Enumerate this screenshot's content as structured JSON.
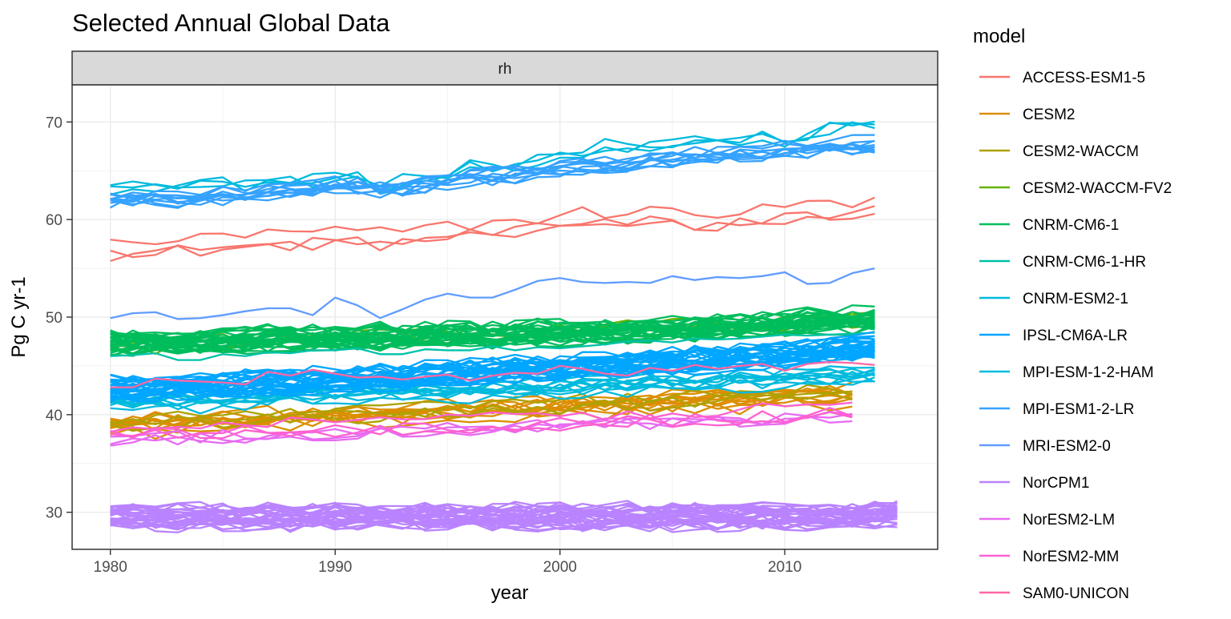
{
  "chart_data": {
    "type": "line",
    "title": "Selected Annual Global Data",
    "facet_label": "rh",
    "xlabel": "year",
    "ylabel": "Pg C yr-1",
    "xlim": [
      1978.3,
      2016.8
    ],
    "ylim": [
      26.2,
      73.8
    ],
    "x_ticks": [
      1980,
      1990,
      2000,
      2010
    ],
    "y_ticks": [
      30,
      40,
      50,
      60,
      70
    ],
    "grid": true,
    "legend": {
      "title": "model",
      "position": "right"
    },
    "series": [
      {
        "name": "ACCESS-ESM1-5",
        "color": "#F8766D",
        "members": 3,
        "x_start": 1980,
        "x_end": 2014,
        "values_mean": [
          57.1,
          57.1,
          57.3,
          57.4,
          57.5,
          57.6,
          57.8,
          58.0,
          58.0,
          58.2,
          58.2,
          58.2,
          58.1,
          58.4,
          58.5,
          58.8,
          59.0,
          59.2,
          59.3,
          59.6,
          59.8,
          60.2,
          60.2,
          60.3,
          60.4,
          60.3,
          60.1,
          60.1,
          60.3,
          60.5,
          60.9,
          61.0,
          61.1,
          61.3,
          61.4
        ]
      },
      {
        "name": "CESM2",
        "color": "#DB8E00",
        "members": 11,
        "x_start": 1980,
        "x_end": 2013,
        "values_mean": [
          38.9,
          39.0,
          39.1,
          39.2,
          39.3,
          39.4,
          39.5,
          39.6,
          39.7,
          39.8,
          39.9,
          40.0,
          40.0,
          40.1,
          40.2,
          40.3,
          40.4,
          40.5,
          40.6,
          40.7,
          40.8,
          40.9,
          41.0,
          41.1,
          41.2,
          41.3,
          41.4,
          41.5,
          41.6,
          41.7,
          41.8,
          41.9,
          42.0,
          42.1
        ]
      },
      {
        "name": "CESM2-WACCM",
        "color": "#AEA200",
        "members": 3,
        "x_start": 1980,
        "x_end": 2013,
        "values_mean": [
          39.1,
          39.2,
          39.3,
          39.4,
          39.5,
          39.5,
          39.6,
          39.7,
          39.8,
          39.9,
          40.0,
          40.1,
          40.2,
          40.3,
          40.4,
          40.5,
          40.6,
          40.7,
          40.8,
          40.9,
          41.0,
          41.1,
          41.2,
          41.3,
          41.4,
          41.5,
          41.6,
          41.7,
          41.8,
          41.9,
          42.0,
          42.1,
          42.2,
          42.3
        ]
      },
      {
        "name": "CESM2-WACCM-FV2",
        "color": "#64B200",
        "members": 3,
        "x_start": 1980,
        "x_end": 2014,
        "values_mean": [
          47.0,
          47.1,
          47.2,
          47.3,
          47.3,
          47.4,
          47.5,
          47.6,
          47.7,
          47.8,
          47.8,
          47.9,
          48.0,
          48.1,
          48.2,
          48.2,
          48.3,
          48.4,
          48.5,
          48.6,
          48.6,
          48.7,
          48.8,
          48.9,
          49.0,
          49.0,
          49.1,
          49.2,
          49.3,
          49.4,
          49.4,
          49.5,
          49.6,
          49.7,
          49.8
        ]
      },
      {
        "name": "CNRM-CM6-1",
        "color": "#00BD5C",
        "members": 30,
        "x_start": 1980,
        "x_end": 2014,
        "values_mean": [
          47.5,
          47.5,
          47.6,
          47.6,
          47.7,
          47.7,
          47.8,
          47.8,
          47.9,
          47.9,
          48.0,
          48.0,
          48.1,
          48.1,
          48.2,
          48.2,
          48.3,
          48.3,
          48.4,
          48.4,
          48.5,
          48.5,
          48.6,
          48.7,
          48.8,
          48.9,
          49.0,
          49.1,
          49.2,
          49.3,
          49.4,
          49.5,
          49.6,
          49.7,
          49.8
        ]
      },
      {
        "name": "CNRM-CM6-1-HR",
        "color": "#00C1A7",
        "members": 1,
        "x_start": 1980,
        "x_end": 2014,
        "values_mean": [
          46.0,
          46.1,
          46.3,
          45.6,
          45.6,
          46.2,
          46.0,
          46.4,
          46.3,
          46.6,
          46.6,
          46.8,
          46.2,
          46.2,
          46.7,
          46.6,
          46.6,
          47.0,
          46.6,
          46.9,
          46.8,
          47.0,
          47.2,
          47.5,
          47.6,
          47.4,
          47.8,
          47.7,
          47.8,
          48.0,
          48.2,
          48.1,
          48.2,
          48.3,
          48.4
        ]
      },
      {
        "name": "CNRM-ESM2-1",
        "color": "#00BADE",
        "members": 10,
        "x_start": 1980,
        "x_end": 2014,
        "values_mean": [
          41.1,
          41.1,
          41.2,
          41.3,
          41.4,
          41.5,
          41.6,
          41.6,
          41.7,
          41.8,
          41.9,
          42.0,
          42.0,
          42.1,
          42.2,
          42.3,
          42.3,
          42.4,
          42.5,
          42.6,
          42.7,
          42.7,
          42.8,
          42.9,
          43.0,
          43.0,
          43.1,
          43.2,
          43.3,
          43.4,
          43.5,
          43.6,
          43.7,
          43.8,
          43.9
        ]
      },
      {
        "name": "IPSL-CM6A-LR",
        "color": "#00A6FF",
        "members": 30,
        "x_start": 1980,
        "x_end": 2014,
        "values_mean": [
          42.8,
          42.9,
          42.9,
          43.0,
          43.1,
          43.2,
          43.3,
          43.4,
          43.5,
          43.6,
          43.7,
          43.8,
          43.9,
          44.0,
          44.2,
          44.3,
          44.4,
          44.5,
          44.7,
          44.8,
          44.9,
          45.0,
          45.2,
          45.3,
          45.4,
          45.6,
          45.7,
          45.8,
          46.0,
          46.1,
          46.3,
          46.5,
          46.7,
          46.9,
          47.2
        ]
      },
      {
        "name": "MPI-ESM-1-2-HAM",
        "color": "#00BADE",
        "members": 3,
        "x_start": 1980,
        "x_end": 2014,
        "values_mean": [
          63.7,
          63.8,
          63.9,
          63.5,
          64.0,
          64.3,
          64.0,
          64.4,
          64.5,
          64.6,
          65.0,
          64.6,
          63.9,
          64.4,
          64.8,
          65.0,
          65.9,
          66.1,
          65.8,
          66.5,
          67.2,
          67.4,
          68.1,
          67.8,
          68.1,
          68.0,
          68.6,
          68.5,
          68.7,
          68.9,
          68.5,
          68.9,
          69.7,
          70.3,
          70.6
        ]
      },
      {
        "name": "MPI-ESM1-2-LR",
        "color": "#35A2FF",
        "members": 10,
        "x_start": 1980,
        "x_end": 2014,
        "values_mean": [
          61.8,
          62.0,
          62.1,
          61.9,
          62.2,
          62.3,
          62.5,
          62.7,
          62.8,
          63.0,
          63.3,
          63.3,
          62.9,
          63.1,
          63.5,
          63.8,
          64.1,
          64.3,
          64.5,
          64.8,
          65.0,
          65.3,
          65.4,
          65.6,
          65.8,
          66.0,
          66.2,
          66.4,
          66.6,
          66.7,
          66.9,
          67.0,
          67.2,
          67.4,
          67.6
        ]
      },
      {
        "name": "MRI-ESM2-0",
        "color": "#619CFF",
        "members": 1,
        "x_start": 1980,
        "x_end": 2014,
        "values_mean": [
          49.9,
          50.4,
          50.5,
          49.8,
          49.9,
          50.2,
          50.6,
          50.9,
          50.9,
          50.2,
          52.0,
          51.2,
          49.9,
          50.8,
          51.8,
          52.4,
          52.0,
          52.0,
          52.8,
          53.7,
          54.0,
          53.6,
          53.5,
          53.6,
          53.5,
          54.2,
          53.8,
          54.1,
          54.0,
          54.2,
          54.6,
          53.4,
          53.5,
          54.5,
          55.0
        ]
      },
      {
        "name": "NorCPM1",
        "color": "#B983FF",
        "members": 30,
        "x_start": 1980,
        "x_end": 2015,
        "values_mean": [
          29.5,
          29.5,
          29.4,
          29.5,
          29.6,
          29.5,
          29.4,
          29.6,
          29.5,
          29.5,
          29.6,
          29.5,
          29.5,
          29.7,
          29.6,
          29.5,
          29.5,
          29.6,
          29.5,
          29.5,
          29.6,
          29.5,
          29.5,
          29.6,
          29.5,
          29.5,
          29.6,
          29.5,
          29.5,
          29.6,
          29.5,
          29.5,
          29.6,
          29.6,
          29.7,
          29.8
        ]
      },
      {
        "name": "NorESM2-LM",
        "color": "#E76BF3",
        "members": 3,
        "x_start": 1980,
        "x_end": 2013,
        "values_mean": [
          38.0,
          38.1,
          38.1,
          38.2,
          38.2,
          38.3,
          38.3,
          38.4,
          38.5,
          38.5,
          38.6,
          38.6,
          38.7,
          38.8,
          38.8,
          38.9,
          39.0,
          39.1,
          39.1,
          39.2,
          39.3,
          39.4,
          39.5,
          39.5,
          39.6,
          39.7,
          39.8,
          39.9,
          40.0,
          40.0,
          40.1,
          40.2,
          40.3,
          40.5
        ]
      },
      {
        "name": "NorESM2-MM",
        "color": "#FD61D1",
        "members": 3,
        "x_start": 1980,
        "x_end": 2013,
        "values_mean": [
          38.4,
          38.4,
          38.5,
          38.5,
          38.5,
          38.6,
          38.6,
          38.7,
          38.7,
          38.8,
          38.8,
          38.9,
          38.9,
          39.0,
          39.0,
          39.1,
          39.2,
          39.3,
          39.3,
          39.4,
          39.5,
          39.5,
          39.6,
          39.7,
          39.8,
          39.8,
          39.9,
          40.0,
          40.1,
          40.2,
          40.3,
          40.4,
          40.5,
          40.6
        ]
      },
      {
        "name": "SAM0-UNICON",
        "color": "#FF67A4",
        "members": 1,
        "x_start": 1980,
        "x_end": 2014,
        "values_mean": [
          42.8,
          42.8,
          43.7,
          43.5,
          43.4,
          43.3,
          43.1,
          44.4,
          44.0,
          44.6,
          44.2,
          43.8,
          43.9,
          43.6,
          43.9,
          44.1,
          43.5,
          44.0,
          44.3,
          44.2,
          45.0,
          44.7,
          44.2,
          44.0,
          44.8,
          44.5,
          45.1,
          44.7,
          45.0,
          45.2,
          44.5,
          45.2,
          45.4,
          45.3,
          45.1
        ]
      }
    ]
  }
}
